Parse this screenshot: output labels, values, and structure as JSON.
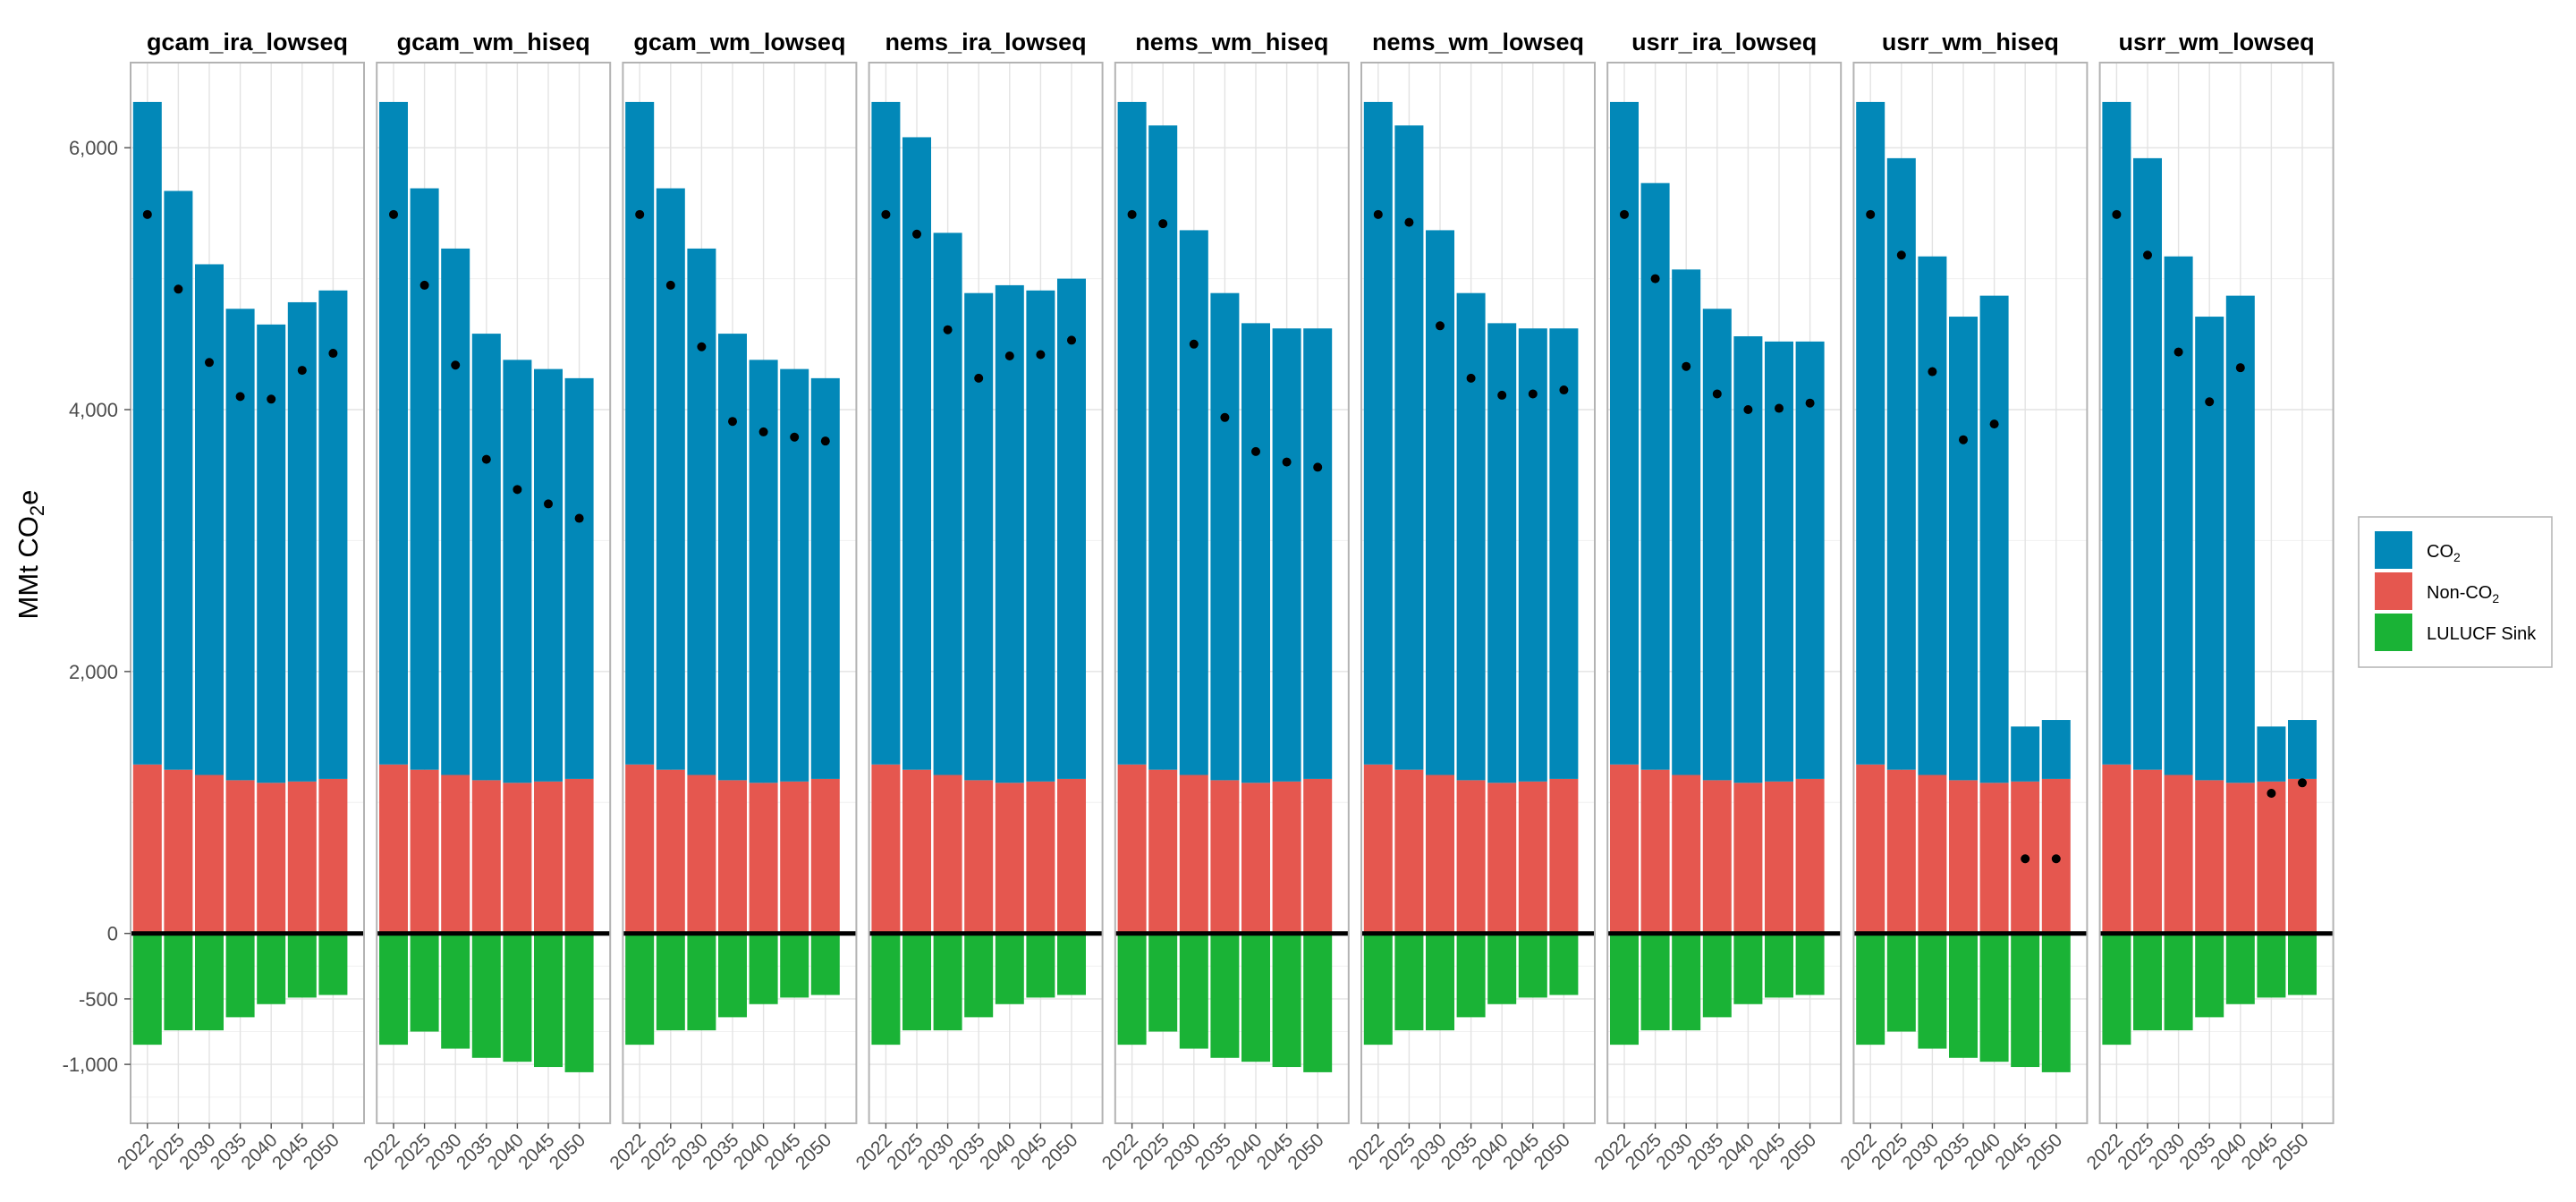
{
  "chart_data": {
    "type": "bar",
    "facet": "small-multiples",
    "ylabel": "MMt CO",
    "ylabel_sub": "2",
    "ylabel_suffix": "e",
    "ylim": [
      -1450,
      6650
    ],
    "yticks": [
      6000,
      4000,
      2000,
      0,
      -500,
      -1000
    ],
    "ytick_labels": [
      "6,000",
      "4,000",
      "2,000",
      "0",
      "-500",
      "-1,000"
    ],
    "x": [
      2022,
      2025,
      2030,
      2035,
      2040,
      2045,
      2050
    ],
    "x_labels": [
      "2022",
      "2025",
      "2030",
      "2035",
      "2040",
      "2045",
      "2050"
    ],
    "grid": true,
    "legend_position": "right",
    "legend": [
      {
        "key": "co2",
        "label": "CO",
        "sub": "2",
        "color": "#0288B8"
      },
      {
        "key": "nonco2",
        "label": "Non-CO",
        "sub": "2",
        "color": "#E5574F"
      },
      {
        "key": "lulucf",
        "label": "LULUCF Sink",
        "color": "#1AB336"
      }
    ],
    "point_color": "#000000",
    "zero_line_color": "#000000",
    "panels": [
      {
        "name": "gcam_ira_lowseq",
        "co2": [
          5060,
          4420,
          3900,
          3600,
          3500,
          3660,
          3730
        ],
        "nonco2": [
          1290,
          1250,
          1210,
          1170,
          1150,
          1160,
          1180
        ],
        "lulucf": [
          -850,
          -740,
          -740,
          -640,
          -540,
          -490,
          -470
        ],
        "net": [
          5490,
          4920,
          4360,
          4100,
          4080,
          4300,
          4430
        ]
      },
      {
        "name": "gcam_wm_hiseq",
        "co2": [
          5060,
          4440,
          4020,
          3410,
          3230,
          3150,
          3060
        ],
        "nonco2": [
          1290,
          1250,
          1210,
          1170,
          1150,
          1160,
          1180
        ],
        "lulucf": [
          -850,
          -750,
          -880,
          -950,
          -980,
          -1020,
          -1060
        ],
        "net": [
          5490,
          4950,
          4340,
          3620,
          3390,
          3280,
          3170
        ]
      },
      {
        "name": "gcam_wm_lowseq",
        "co2": [
          5060,
          4440,
          4020,
          3410,
          3230,
          3150,
          3060
        ],
        "nonco2": [
          1290,
          1250,
          1210,
          1170,
          1150,
          1160,
          1180
        ],
        "lulucf": [
          -850,
          -740,
          -740,
          -640,
          -540,
          -490,
          -470
        ],
        "net": [
          5490,
          4950,
          4480,
          3910,
          3830,
          3790,
          3760
        ]
      },
      {
        "name": "nems_ira_lowseq",
        "co2": [
          5060,
          4830,
          4140,
          3720,
          3800,
          3750,
          3820
        ],
        "nonco2": [
          1290,
          1250,
          1210,
          1170,
          1150,
          1160,
          1180
        ],
        "lulucf": [
          -850,
          -740,
          -740,
          -640,
          -540,
          -490,
          -470
        ],
        "net": [
          5490,
          5340,
          4610,
          4240,
          4410,
          4420,
          4530
        ]
      },
      {
        "name": "nems_wm_hiseq",
        "co2": [
          5060,
          4920,
          4160,
          3720,
          3510,
          3460,
          3440
        ],
        "nonco2": [
          1290,
          1250,
          1210,
          1170,
          1150,
          1160,
          1180
        ],
        "lulucf": [
          -850,
          -750,
          -880,
          -950,
          -980,
          -1020,
          -1060
        ],
        "net": [
          5490,
          5420,
          4500,
          3940,
          3680,
          3600,
          3560
        ]
      },
      {
        "name": "nems_wm_lowseq",
        "co2": [
          5060,
          4920,
          4160,
          3720,
          3510,
          3460,
          3440
        ],
        "nonco2": [
          1290,
          1250,
          1210,
          1170,
          1150,
          1160,
          1180
        ],
        "lulucf": [
          -850,
          -740,
          -740,
          -640,
          -540,
          -490,
          -470
        ],
        "net": [
          5490,
          5430,
          4640,
          4240,
          4110,
          4120,
          4150
        ]
      },
      {
        "name": "usrr_ira_lowseq",
        "co2": [
          5060,
          4480,
          3860,
          3600,
          3410,
          3360,
          3340
        ],
        "nonco2": [
          1290,
          1250,
          1210,
          1170,
          1150,
          1160,
          1180
        ],
        "lulucf": [
          -850,
          -740,
          -740,
          -640,
          -540,
          -490,
          -470
        ],
        "net": [
          5490,
          5000,
          4330,
          4120,
          4000,
          4010,
          4050
        ]
      },
      {
        "name": "usrr_wm_hiseq",
        "co2": [
          5060,
          4670,
          3960,
          3540,
          3720,
          420,
          450
        ],
        "nonco2": [
          1290,
          1250,
          1210,
          1170,
          1150,
          1160,
          1180
        ],
        "lulucf": [
          -850,
          -750,
          -880,
          -950,
          -980,
          -1020,
          -1060
        ],
        "net": [
          5490,
          5180,
          4290,
          3770,
          3890,
          570,
          570
        ]
      },
      {
        "name": "usrr_wm_lowseq",
        "co2": [
          5060,
          4670,
          3960,
          3540,
          3720,
          420,
          450
        ],
        "nonco2": [
          1290,
          1250,
          1210,
          1170,
          1150,
          1160,
          1180
        ],
        "lulucf": [
          -850,
          -740,
          -740,
          -640,
          -540,
          -490,
          -470
        ],
        "net": [
          5490,
          5180,
          4440,
          4060,
          4320,
          1070,
          1150
        ]
      }
    ]
  }
}
